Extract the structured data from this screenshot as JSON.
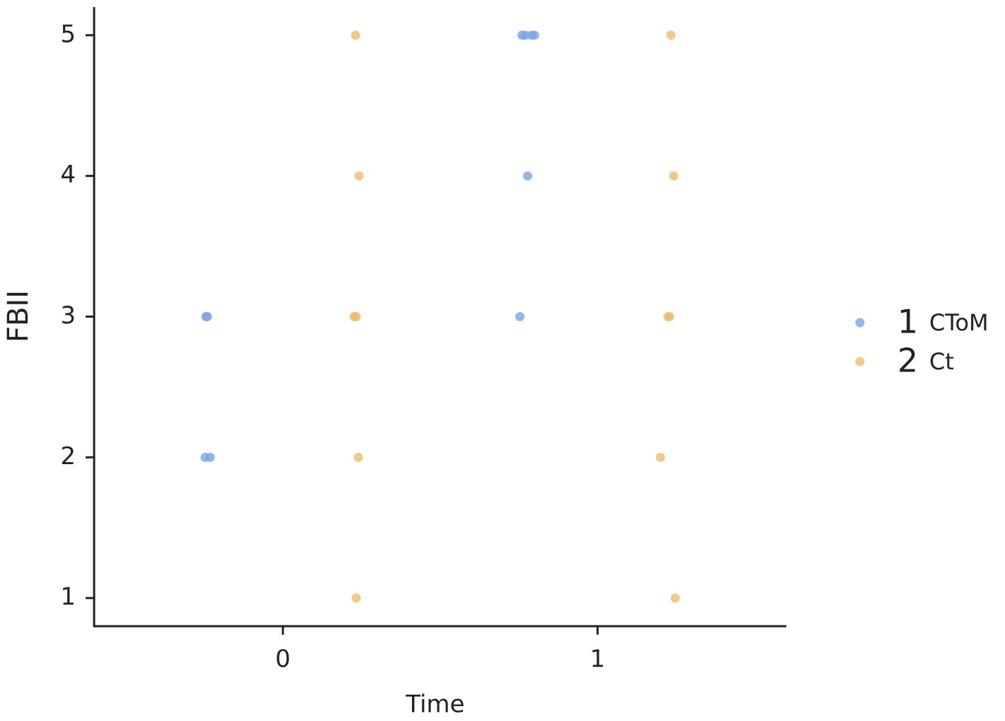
{
  "chart_data": {
    "type": "scatter",
    "x_label": "Time",
    "y_label": "FBII",
    "series": [
      {
        "name": "1",
        "label": "CToM",
        "color": "#7ba3e6",
        "x": [
          -0.245,
          -0.24,
          -0.247,
          -0.231,
          0.76,
          0.77,
          0.79,
          0.8,
          0.778,
          0.753
        ],
        "values": [
          3,
          3,
          2,
          2,
          5,
          5,
          5,
          5,
          4,
          3
        ]
      },
      {
        "name": "2",
        "label": "Ct",
        "color": "#eebc6a",
        "x": [
          0.231,
          0.242,
          0.226,
          0.233,
          0.24,
          0.233,
          1.233,
          1.242,
          1.224,
          1.229,
          1.2,
          1.247
        ],
        "values": [
          5,
          4,
          3,
          3,
          2,
          1,
          5,
          4,
          3,
          3,
          2,
          1
        ]
      }
    ],
    "xlim": [
      -0.6,
      1.6
    ],
    "xticks": [
      0,
      1
    ],
    "ylim": [
      0.8,
      5.2
    ],
    "yticks": [
      1,
      2,
      3,
      4,
      5
    ]
  }
}
